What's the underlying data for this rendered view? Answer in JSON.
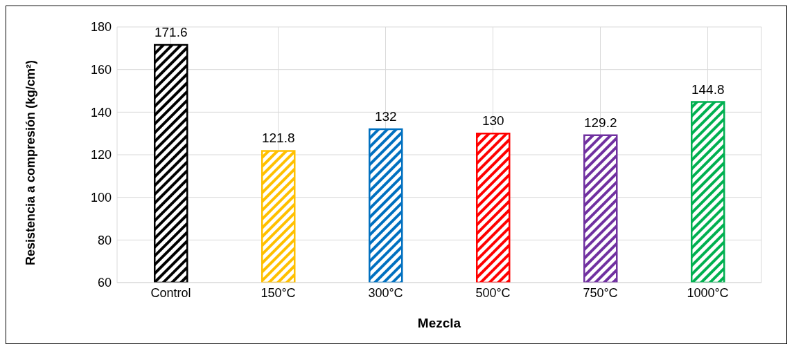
{
  "chart_data": {
    "type": "bar",
    "xlabel": "Mezcla",
    "ylabel": "Resistencia a compresión (kg/cm²)",
    "categories": [
      "Control",
      "150°C",
      "300°C",
      "500°C",
      "750°C",
      "1000°C"
    ],
    "values": [
      171.6,
      121.8,
      132,
      130,
      129.2,
      144.8
    ],
    "colors": [
      "#000000",
      "#ffc000",
      "#0070c0",
      "#ff0000",
      "#7030a0",
      "#00b050"
    ],
    "ylim": [
      60,
      180
    ],
    "yticks": [
      60,
      80,
      100,
      120,
      140,
      160,
      180
    ],
    "grid": true,
    "data_labels": true,
    "legend": false
  }
}
